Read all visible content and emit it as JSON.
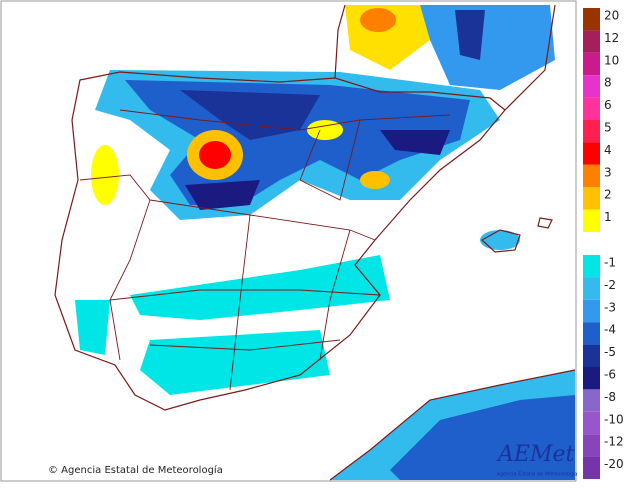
{
  "legend": {
    "items": [
      {
        "label": 20,
        "color": "#993300"
      },
      {
        "label": 12,
        "color": "#a3205a"
      },
      {
        "label": 10,
        "color": "#cc1a8c"
      },
      {
        "label": 8,
        "color": "#e633cc"
      },
      {
        "label": 6,
        "color": "#ff3399"
      },
      {
        "label": 5,
        "color": "#ff2050"
      },
      {
        "label": 4,
        "color": "#ff0000"
      },
      {
        "label": 3,
        "color": "#ff8000"
      },
      {
        "label": 2,
        "color": "#ffc000"
      },
      {
        "label": 1,
        "color": "#ffff00"
      },
      {
        "label": -1,
        "color": "#00e5e5"
      },
      {
        "label": -2,
        "color": "#33bbee"
      },
      {
        "label": -3,
        "color": "#3399ee"
      },
      {
        "label": -4,
        "color": "#1f5fcc"
      },
      {
        "label": -5,
        "color": "#1a3399"
      },
      {
        "label": -6,
        "color": "#1a1a80"
      },
      {
        "label": -8,
        "color": "#8866cc"
      },
      {
        "label": -10,
        "color": "#9955cc"
      },
      {
        "label": -12,
        "color": "#8844bb"
      },
      {
        "label": -20,
        "color": "#7733aa"
      }
    ]
  },
  "footer": {
    "copyright": "© Agencia Estatal de Meteorología"
  },
  "logo": {
    "name": "AEMet",
    "subtitle": "Agencia Estatal de Meteorología"
  }
}
